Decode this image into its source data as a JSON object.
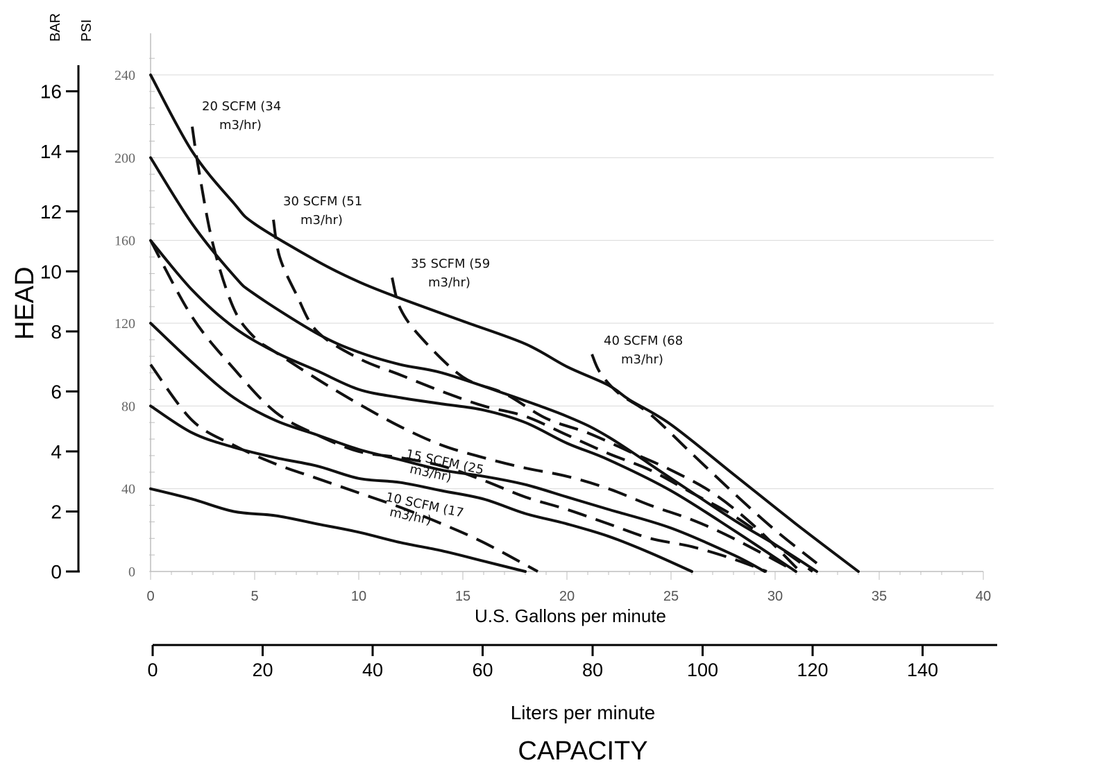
{
  "chart_data": {
    "type": "line",
    "axes": {
      "psi_unit": "PSI",
      "bar_unit": "BAR",
      "head_label": "HEAD",
      "gpm_label": "U.S. Gallons per minute",
      "lpm_label": "Liters per minute",
      "capacity_label": "CAPACITY",
      "psi_range": [
        0,
        250
      ],
      "psi_ticks": [
        "0",
        "40",
        "80",
        "120",
        "160",
        "200",
        "240"
      ],
      "bar_range": [
        0,
        17.24
      ],
      "bar_ticks": [
        "0",
        "2",
        "4",
        "6",
        "8",
        "10",
        "12",
        "14",
        "16"
      ],
      "gpm_range": [
        0,
        40
      ],
      "gpm_ticks": [
        "0",
        "5",
        "10",
        "15",
        "20",
        "25",
        "30",
        "35",
        "40"
      ],
      "lpm_range": [
        0,
        151.4
      ],
      "lpm_ticks": [
        "0",
        "20",
        "40",
        "60",
        "80",
        "100",
        "120",
        "140"
      ]
    },
    "pressure_curves": [
      {
        "name": "supply-240",
        "x": [
          0,
          2,
          4,
          5,
          8,
          10,
          12,
          15,
          18,
          20,
          22,
          23,
          25,
          28,
          31,
          34
        ],
        "y": [
          240,
          203,
          178,
          168,
          150,
          140,
          132,
          121,
          110,
          99,
          90,
          83,
          71,
          47,
          23,
          0
        ]
      },
      {
        "name": "supply-200",
        "x": [
          0,
          2,
          4,
          5,
          8,
          10,
          12,
          14,
          17,
          20,
          22,
          25,
          28,
          30,
          32
        ],
        "y": [
          200,
          168,
          143,
          134,
          115,
          106,
          100,
          96,
          86,
          75,
          65,
          45,
          25,
          13,
          0
        ]
      },
      {
        "name": "supply-160",
        "x": [
          0,
          2,
          4,
          6,
          8,
          10,
          12,
          14,
          16,
          18,
          20,
          22,
          25,
          28,
          31
        ],
        "y": [
          160,
          136,
          118,
          106,
          97,
          88,
          84,
          81,
          78,
          72,
          62,
          54,
          39,
          20,
          0
        ]
      },
      {
        "name": "supply-120",
        "x": [
          0,
          2,
          4,
          6,
          8,
          10,
          12,
          14,
          16,
          18,
          20,
          22,
          25,
          28,
          29.5
        ],
        "y": [
          120,
          101,
          84,
          73,
          66,
          59,
          54,
          49,
          46,
          42,
          36,
          30,
          21,
          8,
          0
        ]
      },
      {
        "name": "supply-80",
        "x": [
          0,
          2,
          4,
          6,
          8,
          10,
          12,
          14,
          16,
          18,
          20,
          22,
          24,
          26
        ],
        "y": [
          80,
          67,
          60,
          55,
          51,
          45,
          43,
          39,
          35,
          28,
          23,
          17,
          9,
          0
        ]
      },
      {
        "name": "supply-40",
        "x": [
          0,
          2,
          4,
          6,
          8,
          10,
          12,
          14,
          16,
          18
        ],
        "y": [
          40,
          35,
          29,
          27,
          23,
          19,
          14,
          10,
          5,
          0
        ]
      }
    ],
    "air_curves": [
      {
        "label": "10 SCFM (17",
        "label2": "m3/hr)",
        "x": [
          0,
          2,
          4,
          6,
          8,
          10,
          12,
          14,
          16,
          18.6
        ],
        "y": [
          100,
          73,
          61,
          52,
          45,
          38,
          31,
          23,
          14,
          0
        ]
      },
      {
        "label": "15 SCFM (25",
        "label2": "m3/hr)",
        "x": [
          0,
          2,
          4,
          6,
          8,
          10,
          12,
          14,
          16,
          18,
          20,
          22,
          24,
          26,
          28,
          29.6
        ],
        "y": [
          160,
          123,
          98,
          77,
          66,
          58,
          55,
          51,
          44,
          36,
          30,
          23,
          16,
          12,
          6,
          0
        ]
      },
      {
        "label": "20 SCFM (34",
        "label2": "m3/hr)",
        "x": [
          2,
          2.3,
          3,
          4,
          5,
          6,
          8,
          10,
          12,
          14,
          16,
          18,
          20,
          22,
          24,
          26,
          28,
          31
        ],
        "y": [
          215,
          195,
          158,
          127,
          113,
          106,
          93,
          81,
          70,
          61,
          55,
          50,
          46,
          40,
          32,
          25,
          16,
          0
        ]
      },
      {
        "label": "30 SCFM (51",
        "label2": "m3/hr)",
        "x": [
          5.9,
          6.2,
          7,
          8,
          10,
          12,
          14,
          16,
          18,
          20,
          22,
          24,
          26,
          28,
          30,
          31.8
        ],
        "y": [
          170,
          152,
          134,
          116,
          103,
          95,
          87,
          80,
          75,
          66,
          57,
          49,
          38,
          27,
          13,
          0
        ]
      },
      {
        "label": "35 SCFM (59",
        "label2": "m3/hr)",
        "x": [
          11.6,
          12,
          13,
          15,
          17,
          19,
          21,
          23,
          25,
          27,
          29,
          31.2
        ],
        "y": [
          142,
          127,
          113,
          94,
          86,
          74,
          67,
          58,
          49,
          38,
          22,
          0
        ]
      },
      {
        "label": "40 SCFM (68",
        "label2": "m3/hr)",
        "x": [
          21.2,
          21.6,
          22.5,
          24,
          26,
          28,
          30,
          32
        ],
        "y": [
          105,
          96,
          86,
          76,
          57,
          38,
          20,
          4
        ]
      }
    ]
  }
}
